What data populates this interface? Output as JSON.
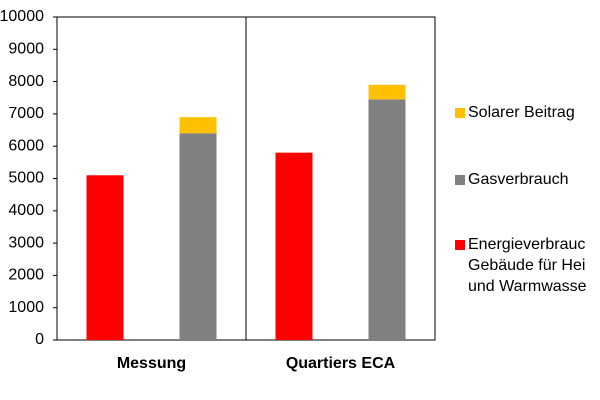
{
  "chart_data": {
    "type": "bar",
    "categories": [
      "Messung",
      "Quartiers ECA"
    ],
    "series": [
      {
        "name": [
          "Energieverbrauc",
          "Gebäude für Hei",
          "und Warmwasse"
        ],
        "color": "#ff0000",
        "values": [
          5100,
          5800
        ],
        "slot": "left"
      },
      {
        "name": "Gasverbrauch",
        "color": "#808080",
        "values": [
          6400,
          7450
        ],
        "slot": "right"
      },
      {
        "name": "Solarer Beitrag",
        "color": "#ffc000",
        "values": [
          500,
          450
        ],
        "slot": "right"
      }
    ],
    "ylim": [
      0,
      10000
    ],
    "yticks": [
      0,
      1000,
      2000,
      3000,
      4000,
      5000,
      6000,
      7000,
      8000,
      9000,
      10000
    ],
    "grid": false
  }
}
